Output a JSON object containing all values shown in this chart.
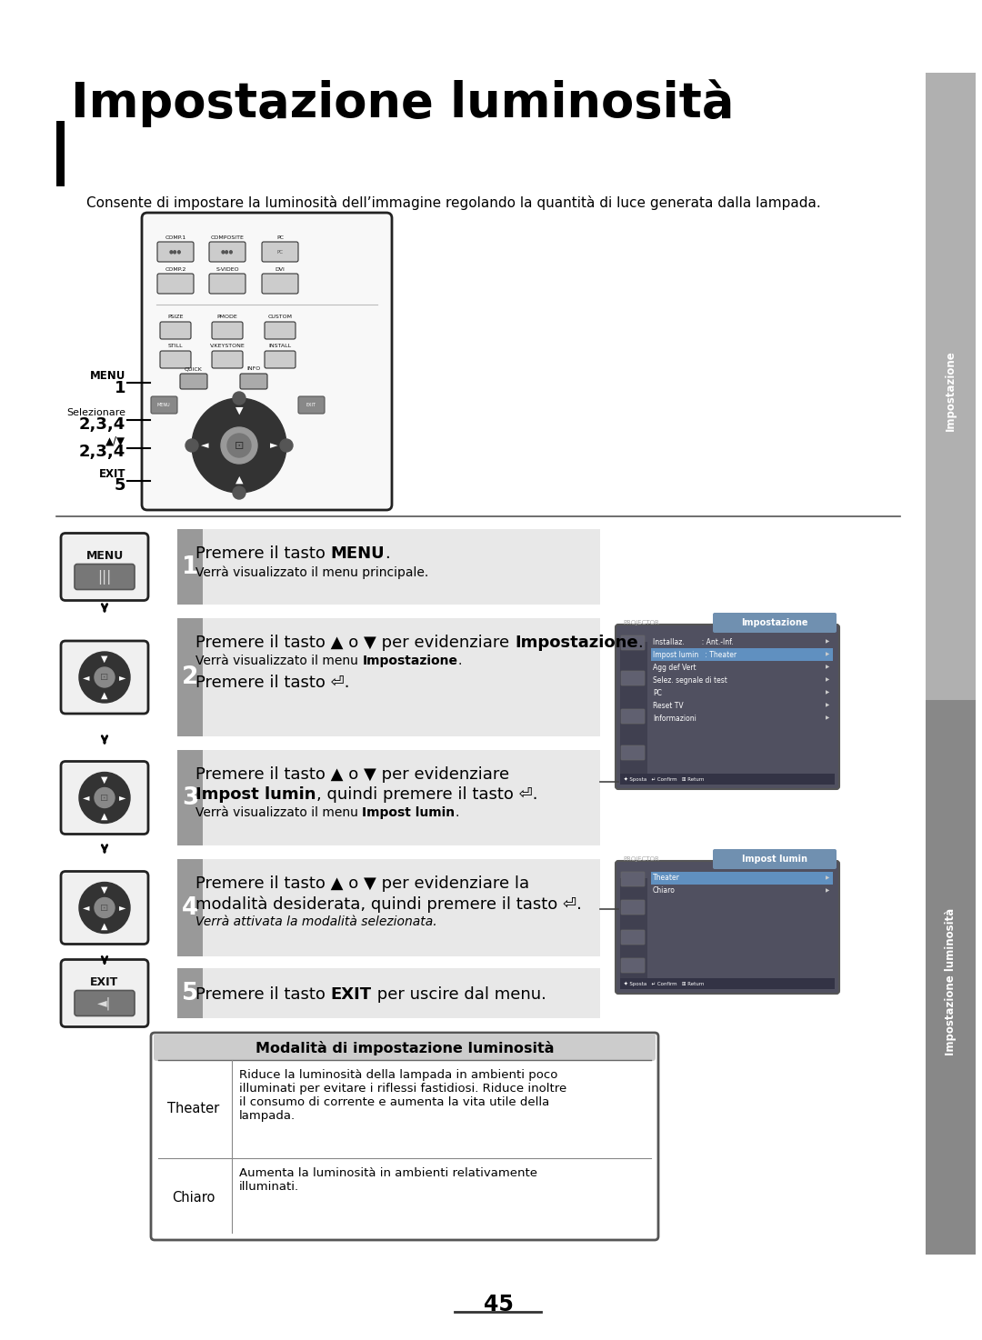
{
  "bg_color": "#ffffff",
  "page_num": "45",
  "title": "Impostazione luminosità",
  "subtitle": "Consente di impostare la luminosità dell’immagine regolando la quantità di luce generata dalla lampada.",
  "sidebar_top_label": "Impostazione",
  "sidebar_bot_label": "Impostazione luminosità",
  "table_title": "Modalità di impostazione luminosità",
  "table_row1_col1": "Theater",
  "table_row1_col2": "Riduce la luminosità della lampada in ambienti poco\nilluminati per evitare i riflessi fastidiosi. Riduce inoltre\nil consumo di corrente e aumenta la vita utile della\nlampada.",
  "table_row2_col1": "Chiaro",
  "table_row2_col2": "Aumenta la luminosità in ambienti relativamente\nilluminati.",
  "step1_main1": "Premere il tasto ",
  "step1_bold1": "MENU",
  "step1_main2": ".",
  "step1_sub": "Verrà visualizzato il menu principale.",
  "step2_main": "Premere il tasto ▲ o ▼ per evidenziare ",
  "step2_bold": "Impostazione",
  "step2_main2": ".",
  "step2_sub1": "Verrà visualizzato il menu ",
  "step2_sub_bold": "Impostazione",
  "step2_sub2": ".",
  "step2_extra": "Premere il tasto ⏎.",
  "step3_main1": "Premere il tasto ▲ o ▼ per evidenziare",
  "step3_bold": "Impost lumin",
  "step3_main2": ", quindi premere il tasto ⏎.",
  "step3_sub1": "Verrà visualizzato il menu ",
  "step3_sub_bold": "Impost lumin",
  "step3_sub2": ".",
  "step4_main1": "Premere il tasto ▲ o ▼ per evidenziare la",
  "step4_main2": "modalità desiderata, quindi premere il tasto ⏎.",
  "step4_sub": "Verrà attivata la modalità selezionata.",
  "step5_main1": "Premere il tasto ",
  "step5_bold": "EXIT",
  "step5_main2": " per uscire dal menu.",
  "scr1_title": "Impostazione",
  "scr1_items": [
    "Installaz.        : Ant.-Inf.",
    "Impost lumin   : Theater",
    "Agg def Vert",
    "Selez. segnale di test",
    "PC",
    "Reset TV",
    "Informazioni"
  ],
  "scr1_highlight": 1,
  "scr2_title": "Impost lumin",
  "scr2_items": [
    "Theater",
    "Chiaro"
  ],
  "scr2_highlight": 0
}
